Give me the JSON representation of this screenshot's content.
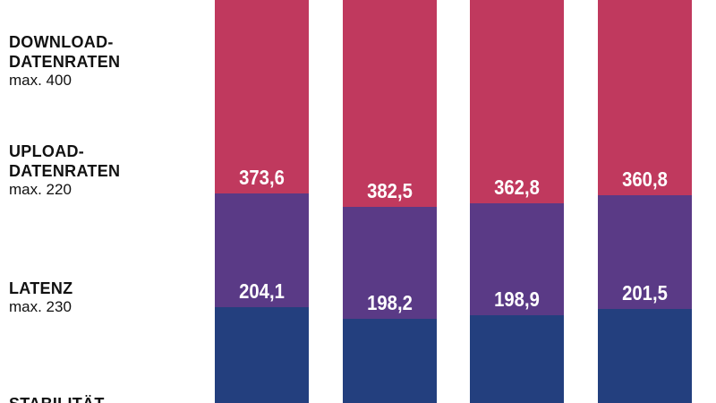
{
  "rows": [
    {
      "lines": [
        "DOWNLOAD-",
        "DATENRATEN"
      ],
      "max": "max. 400"
    },
    {
      "lines": [
        "UPLOAD-",
        "DATENRATEN"
      ],
      "max": "max. 220"
    },
    {
      "lines": [
        "LATENZ"
      ],
      "max": "max. 230"
    },
    {
      "lines": [
        "STABILITÄT"
      ]
    }
  ],
  "columns": [
    {
      "download": "373,6",
      "upload": "204,1"
    },
    {
      "download": "382,5",
      "upload": "198,2"
    },
    {
      "download": "362,8",
      "upload": "198,9"
    },
    {
      "download": "360,8",
      "upload": "201,5"
    }
  ]
}
